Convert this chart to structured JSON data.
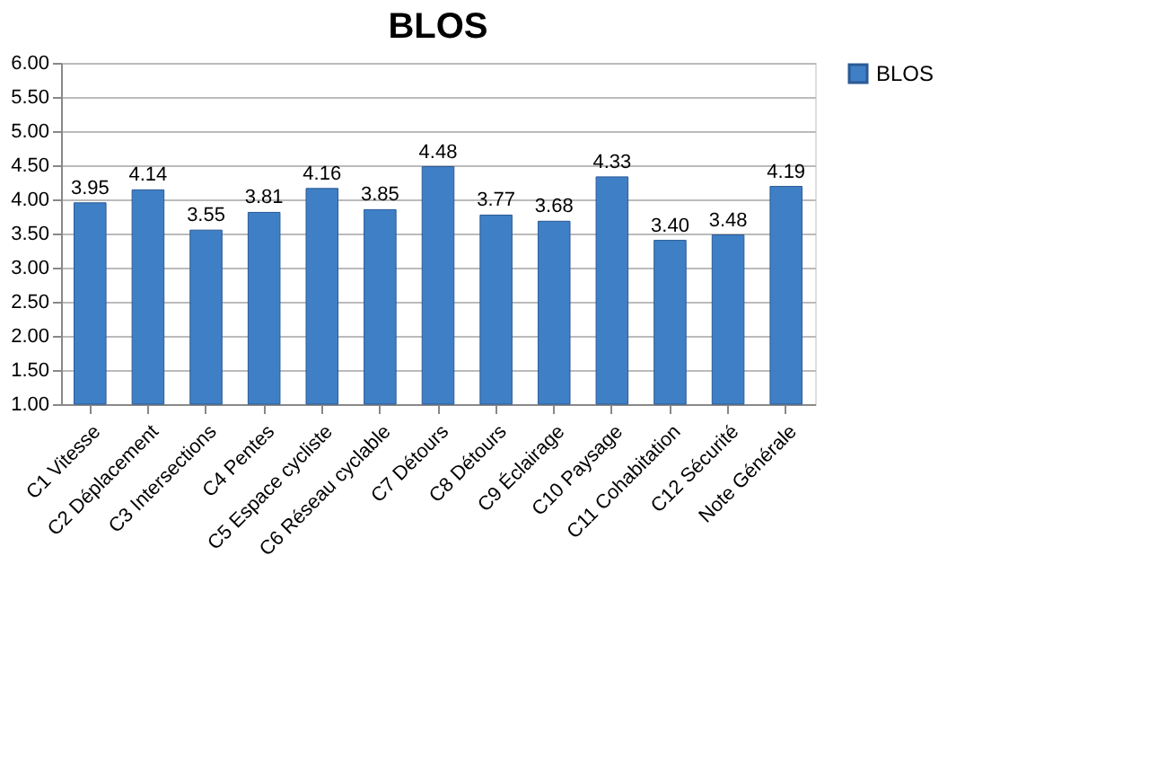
{
  "chart_data": {
    "type": "bar",
    "title": "BLOS",
    "categories": [
      "C1 Vitesse",
      "C2 Déplacement",
      "C3 Intersections",
      "C4 Pentes",
      "C5 Espace cycliste",
      "C6 Réseau cyclable",
      "C7 Détours",
      "C8 Détours",
      "C9 Éclairage",
      "C10 Paysage",
      "C11 Cohabitation",
      "C12 Sécurité",
      "Note Générale"
    ],
    "series": [
      {
        "name": "BLOS",
        "color": "#3f7fc6",
        "values": [
          3.95,
          4.14,
          3.55,
          3.81,
          4.16,
          3.85,
          4.48,
          3.77,
          3.68,
          4.33,
          3.4,
          3.48,
          4.19
        ],
        "value_labels": [
          "3.95",
          "4.14",
          "3.55",
          "3.81",
          "4.16",
          "3.85",
          "4.48",
          "3.77",
          "3.68",
          "4.33",
          "3.40",
          "3.48",
          "4.19"
        ]
      }
    ],
    "ylim": [
      1,
      6
    ],
    "yticks": [
      {
        "value": 1,
        "label": "1.00"
      },
      {
        "value": 1.5,
        "label": "1.50"
      },
      {
        "value": 2,
        "label": "2.00"
      },
      {
        "value": 2.5,
        "label": "2.50"
      },
      {
        "value": 3,
        "label": "3.00"
      },
      {
        "value": 3.5,
        "label": "3.50"
      },
      {
        "value": 4,
        "label": "4.00"
      },
      {
        "value": 4.5,
        "label": "4.50"
      },
      {
        "value": 5,
        "label": "5.00"
      },
      {
        "value": 5.5,
        "label": "5.50"
      },
      {
        "value": 6,
        "label": "6.00"
      }
    ],
    "grid": "y",
    "legend": "right"
  }
}
